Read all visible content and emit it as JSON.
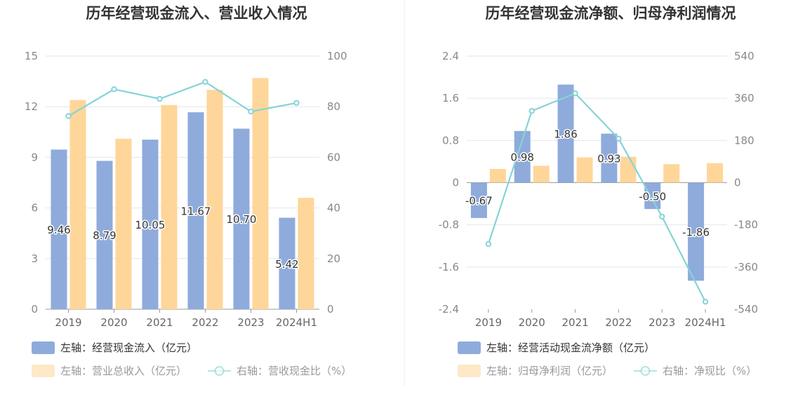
{
  "colors": {
    "bar_blue": "#8eabdb",
    "bar_orange": "#ffd699",
    "line": "#86d3d6",
    "grid": "#e3e6ec",
    "axis": "#999999",
    "divider": "#eeeeee",
    "legend_active": "#333333",
    "legend_inactive": "#999999"
  },
  "chart_data": [
    {
      "type": "bar",
      "title": "历年经营现金流入、营业收入情况",
      "categories": [
        "2019",
        "2020",
        "2021",
        "2022",
        "2023",
        "2024H1"
      ],
      "left_axis": {
        "ylim": [
          0,
          15
        ],
        "ticks": [
          "0",
          "3",
          "6",
          "9",
          "12",
          "15"
        ]
      },
      "right_axis": {
        "ylim": [
          0,
          100
        ],
        "ticks": [
          "0",
          "20",
          "40",
          "60",
          "80",
          "100"
        ]
      },
      "series": [
        {
          "name": "左轴：经营现金流入（亿元）",
          "kind": "bar",
          "axis": "left",
          "values": [
            9.46,
            8.79,
            10.05,
            11.67,
            10.7,
            5.42
          ],
          "labels": [
            "9.46",
            "8.79",
            "10.05",
            "11.67",
            "10.70",
            "5.42"
          ],
          "legend_active": true
        },
        {
          "name": "左轴：营业总收入（亿元）",
          "kind": "bar",
          "axis": "left",
          "values": [
            12.4,
            10.1,
            12.1,
            13.0,
            13.7,
            6.6
          ],
          "legend_active": false
        },
        {
          "name": "右轴：营收现金比（%）",
          "kind": "line",
          "axis": "right",
          "values": [
            76.3,
            86.9,
            83.1,
            89.8,
            78.1,
            81.5
          ],
          "legend_active": false
        }
      ]
    },
    {
      "type": "bar",
      "title": "历年经营现金流净额、归母净利润情况",
      "categories": [
        "2019",
        "2020",
        "2021",
        "2022",
        "2023",
        "2024H1"
      ],
      "left_axis": {
        "ylim": [
          -2.4,
          2.4
        ],
        "ticks": [
          "-2.4",
          "-1.6",
          "-0.8",
          "0",
          "0.8",
          "1.6",
          "2.4"
        ]
      },
      "right_axis": {
        "ylim": [
          -540,
          540
        ],
        "ticks": [
          "-540",
          "-360",
          "-180",
          "0",
          "180",
          "360",
          "540"
        ]
      },
      "series": [
        {
          "name": "左轴：经营活动现金流净额（亿元）",
          "kind": "bar",
          "axis": "left",
          "values": [
            -0.67,
            0.98,
            1.86,
            0.93,
            -0.5,
            -1.86
          ],
          "labels": [
            "-0.67",
            "0.98",
            "1.86",
            "0.93",
            "-0.50",
            "-1.86"
          ],
          "legend_active": true
        },
        {
          "name": "左轴：归母净利润（亿元）",
          "kind": "bar",
          "axis": "left",
          "values": [
            0.26,
            0.32,
            0.48,
            0.49,
            0.35,
            0.37
          ],
          "legend_active": false
        },
        {
          "name": "右轴：净现比（%）",
          "kind": "line",
          "axis": "right",
          "values": [
            -262,
            306,
            381,
            188,
            -145,
            -508
          ],
          "legend_active": false
        }
      ]
    }
  ]
}
